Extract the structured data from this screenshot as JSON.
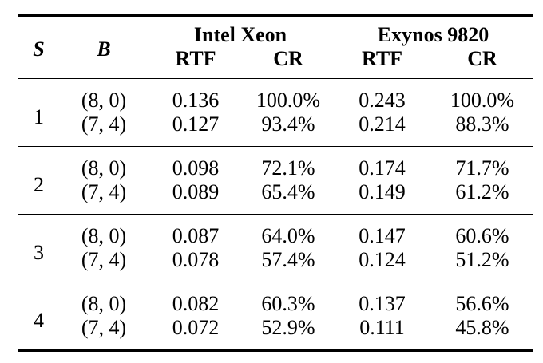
{
  "table": {
    "header": {
      "s": "S",
      "b": "B",
      "devices": [
        "Intel Xeon",
        "Exynos 9820"
      ],
      "rtf": "RTF",
      "cr": "CR"
    },
    "groups": [
      {
        "s": "1",
        "rows": [
          {
            "b": "(8, 0)",
            "intel_rtf": "0.136",
            "intel_cr": "100.0%",
            "exynos_rtf": "0.243",
            "exynos_cr": "100.0%"
          },
          {
            "b": "(7, 4)",
            "intel_rtf": "0.127",
            "intel_cr": "93.4%",
            "exynos_rtf": "0.214",
            "exynos_cr": "88.3%"
          }
        ]
      },
      {
        "s": "2",
        "rows": [
          {
            "b": "(8, 0)",
            "intel_rtf": "0.098",
            "intel_cr": "72.1%",
            "exynos_rtf": "0.174",
            "exynos_cr": "71.7%"
          },
          {
            "b": "(7, 4)",
            "intel_rtf": "0.089",
            "intel_cr": "65.4%",
            "exynos_rtf": "0.149",
            "exynos_cr": "61.2%"
          }
        ]
      },
      {
        "s": "3",
        "rows": [
          {
            "b": "(8, 0)",
            "intel_rtf": "0.087",
            "intel_cr": "64.0%",
            "exynos_rtf": "0.147",
            "exynos_cr": "60.6%"
          },
          {
            "b": "(7, 4)",
            "intel_rtf": "0.078",
            "intel_cr": "57.4%",
            "exynos_rtf": "0.124",
            "exynos_cr": "51.2%"
          }
        ]
      },
      {
        "s": "4",
        "rows": [
          {
            "b": "(8, 0)",
            "intel_rtf": "0.082",
            "intel_cr": "60.3%",
            "exynos_rtf": "0.137",
            "exynos_cr": "56.6%"
          },
          {
            "b": "(7, 4)",
            "intel_rtf": "0.072",
            "intel_cr": "52.9%",
            "exynos_rtf": "0.111",
            "exynos_cr": "45.8%"
          }
        ]
      }
    ]
  }
}
